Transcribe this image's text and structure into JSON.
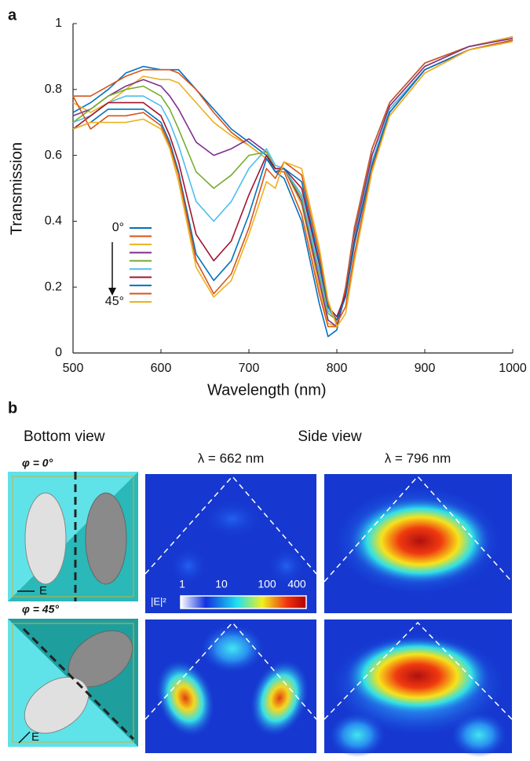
{
  "chart_data": {
    "type": "line",
    "panel_label": "a",
    "x_label": "Wavelength (nm)",
    "y_label": "Transmission",
    "x": [
      500,
      520,
      540,
      560,
      580,
      600,
      610,
      620,
      640,
      660,
      680,
      700,
      720,
      730,
      740,
      760,
      780,
      790,
      800,
      810,
      820,
      840,
      860,
      900,
      950,
      1000
    ],
    "xlim": [
      500,
      1000
    ],
    "xticks": [
      500,
      600,
      700,
      800,
      900,
      1000
    ],
    "ylim": [
      0,
      1
    ],
    "yticks": [
      0,
      0.2,
      0.4,
      0.6,
      0.8,
      1
    ],
    "series": [
      {
        "name": "0°",
        "color": "#0072bd",
        "values": [
          0.73,
          0.76,
          0.8,
          0.85,
          0.87,
          0.86,
          0.86,
          0.86,
          0.8,
          0.74,
          0.68,
          0.64,
          0.6,
          0.55,
          0.53,
          0.4,
          0.15,
          0.05,
          0.07,
          0.2,
          0.38,
          0.62,
          0.76,
          0.88,
          0.93,
          0.96
        ]
      },
      {
        "color": "#d95319",
        "values": [
          0.78,
          0.78,
          0.81,
          0.84,
          0.86,
          0.86,
          0.86,
          0.85,
          0.8,
          0.73,
          0.67,
          0.63,
          0.59,
          0.55,
          0.55,
          0.42,
          0.18,
          0.08,
          0.08,
          0.2,
          0.38,
          0.62,
          0.76,
          0.88,
          0.93,
          0.96
        ]
      },
      {
        "color": "#edb120",
        "values": [
          0.76,
          0.73,
          0.76,
          0.8,
          0.84,
          0.83,
          0.83,
          0.82,
          0.76,
          0.7,
          0.66,
          0.63,
          0.59,
          0.55,
          0.56,
          0.45,
          0.2,
          0.09,
          0.08,
          0.18,
          0.36,
          0.6,
          0.75,
          0.87,
          0.93,
          0.96
        ]
      },
      {
        "color": "#7e2f8e",
        "values": [
          0.72,
          0.74,
          0.78,
          0.81,
          0.83,
          0.81,
          0.78,
          0.74,
          0.64,
          0.6,
          0.62,
          0.65,
          0.61,
          0.56,
          0.56,
          0.46,
          0.22,
          0.1,
          0.08,
          0.18,
          0.36,
          0.6,
          0.75,
          0.87,
          0.93,
          0.955
        ]
      },
      {
        "color": "#77ac30",
        "values": [
          0.7,
          0.74,
          0.78,
          0.8,
          0.81,
          0.78,
          0.74,
          0.68,
          0.55,
          0.5,
          0.54,
          0.6,
          0.61,
          0.56,
          0.56,
          0.47,
          0.24,
          0.12,
          0.1,
          0.18,
          0.35,
          0.58,
          0.74,
          0.86,
          0.92,
          0.95
        ]
      },
      {
        "color": "#4dbeee",
        "values": [
          0.7,
          0.72,
          0.76,
          0.78,
          0.78,
          0.75,
          0.7,
          0.63,
          0.46,
          0.4,
          0.46,
          0.56,
          0.62,
          0.57,
          0.56,
          0.48,
          0.25,
          0.13,
          0.1,
          0.18,
          0.35,
          0.58,
          0.74,
          0.86,
          0.92,
          0.95
        ]
      },
      {
        "color": "#a2142f",
        "values": [
          0.68,
          0.72,
          0.76,
          0.76,
          0.76,
          0.72,
          0.66,
          0.58,
          0.36,
          0.28,
          0.34,
          0.48,
          0.6,
          0.56,
          0.56,
          0.5,
          0.27,
          0.14,
          0.11,
          0.18,
          0.34,
          0.57,
          0.73,
          0.86,
          0.92,
          0.95
        ]
      },
      {
        "color": "#0072bd",
        "values": [
          0.68,
          0.7,
          0.74,
          0.74,
          0.74,
          0.7,
          0.64,
          0.55,
          0.3,
          0.22,
          0.28,
          0.42,
          0.59,
          0.55,
          0.56,
          0.52,
          0.28,
          0.14,
          0.1,
          0.17,
          0.33,
          0.57,
          0.73,
          0.86,
          0.92,
          0.95
        ]
      },
      {
        "color": "#d95319",
        "values": [
          0.78,
          0.68,
          0.72,
          0.72,
          0.73,
          0.69,
          0.63,
          0.54,
          0.28,
          0.18,
          0.24,
          0.38,
          0.56,
          0.53,
          0.58,
          0.54,
          0.3,
          0.15,
          0.09,
          0.14,
          0.3,
          0.56,
          0.72,
          0.85,
          0.92,
          0.95
        ]
      },
      {
        "name": "45°",
        "color": "#edb120",
        "values": [
          0.68,
          0.7,
          0.7,
          0.7,
          0.71,
          0.68,
          0.62,
          0.52,
          0.26,
          0.17,
          0.22,
          0.36,
          0.52,
          0.5,
          0.58,
          0.56,
          0.32,
          0.16,
          0.08,
          0.12,
          0.28,
          0.55,
          0.72,
          0.85,
          0.92,
          0.945
        ]
      }
    ]
  },
  "panel_b": {
    "panel_label": "b",
    "bottom_view": "Bottom view",
    "side_view": "Side view",
    "wavelength_1": "λ = 662 nm",
    "wavelength_2": "λ = 796 nm",
    "angle_1": "φ = 0°",
    "angle_2": "φ = 45°",
    "field_1": "E",
    "field_2": "E",
    "colorbar_label": "|E|²",
    "colorbar_ticks": [
      "1",
      "10",
      "100",
      "400"
    ]
  }
}
